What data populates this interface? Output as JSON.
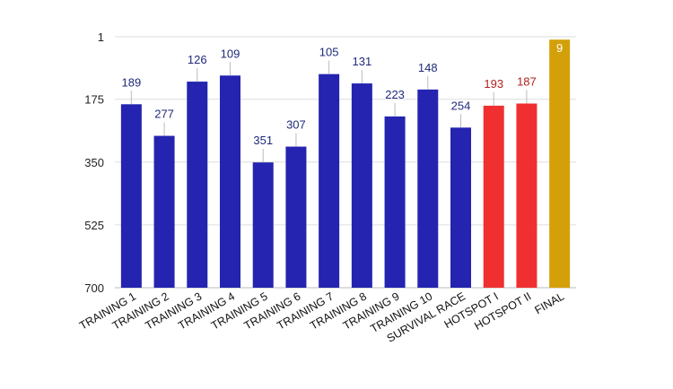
{
  "chart_data": {
    "type": "bar",
    "title": "",
    "xlabel": "",
    "ylabel": "",
    "y_axis_reversed": true,
    "ylim": [
      1,
      700
    ],
    "yticks": [
      1,
      175,
      350,
      525,
      700
    ],
    "grid": true,
    "categories": [
      "TRAINING 1",
      "TRAINING 2",
      "TRAINING 3",
      "TRAINING 4",
      "TRAINING 5",
      "TRAINING 6",
      "TRAINING 7",
      "TRAINING 8",
      "TRAINING 9",
      "TRAINING 10",
      "SURVIVAL RACE",
      "HOTSPOT I",
      "HOTSPOT II",
      "FINAL"
    ],
    "values": [
      189,
      277,
      126,
      109,
      351,
      307,
      105,
      131,
      223,
      148,
      254,
      193,
      187,
      9
    ],
    "bar_colors": [
      "#2424b0",
      "#2424b0",
      "#2424b0",
      "#2424b0",
      "#2424b0",
      "#2424b0",
      "#2424b0",
      "#2424b0",
      "#2424b0",
      "#2424b0",
      "#2424b0",
      "#f03030",
      "#f03030",
      "#d4a00a"
    ],
    "label_colors": [
      "#1f2a78",
      "#1f2a78",
      "#1f2a78",
      "#1f2a78",
      "#1f2a78",
      "#1f2a78",
      "#1f2a78",
      "#1f2a78",
      "#1f2a78",
      "#1f2a78",
      "#1f2a78",
      "#b02020",
      "#b02020",
      "#ffffff"
    ]
  }
}
